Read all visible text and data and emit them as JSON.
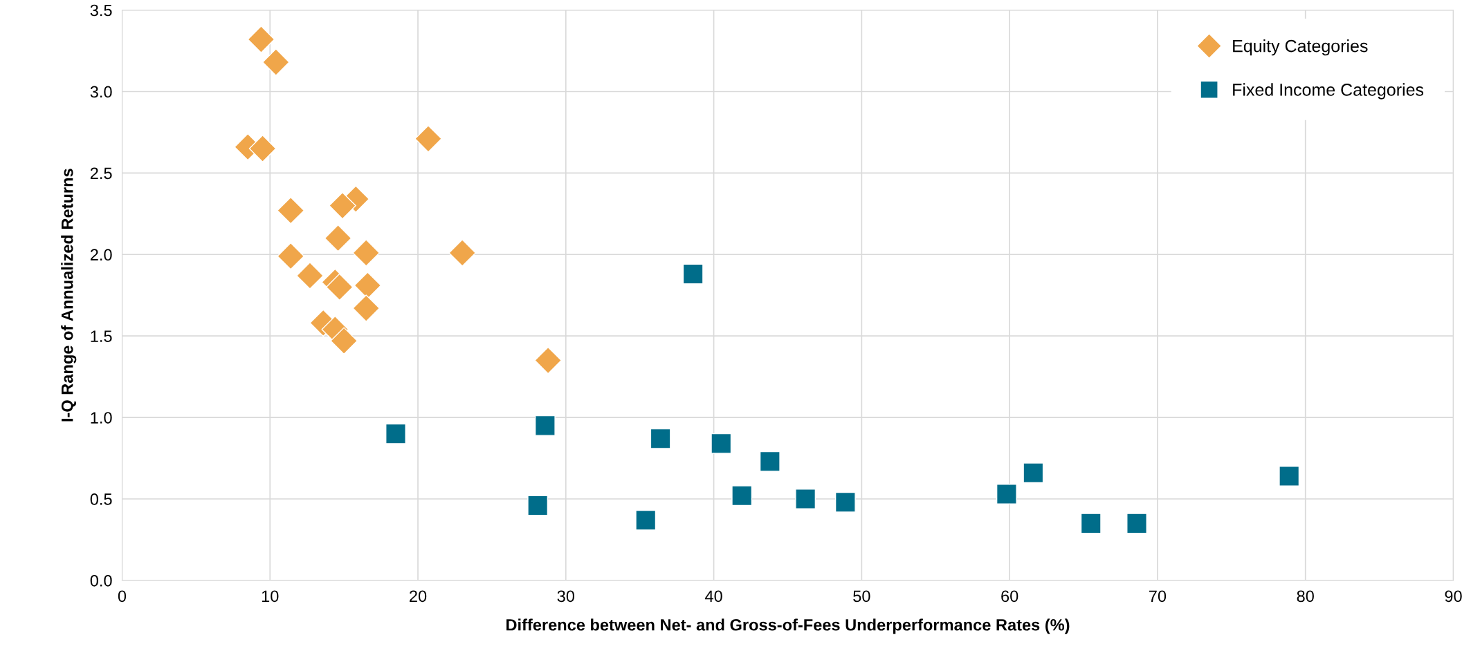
{
  "chart_data": {
    "type": "scatter",
    "xlabel": "Difference between Net- and Gross-of-Fees Underperformance Rates (%)",
    "ylabel": "I-Q Range of Annualized Returns",
    "xlim": [
      0,
      90
    ],
    "xticks": [
      0,
      10,
      20,
      30,
      40,
      50,
      60,
      70,
      80,
      90
    ],
    "ylim": [
      0,
      3.5
    ],
    "yticks": [
      {
        "value": 0,
        "label": "0.0"
      },
      {
        "value": 0.5,
        "label": "0.5"
      },
      {
        "value": 1,
        "label": "1.0"
      },
      {
        "value": 1.5,
        "label": "1.5"
      },
      {
        "value": 2,
        "label": "2.0"
      },
      {
        "value": 2.5,
        "label": "2.5"
      },
      {
        "value": 3,
        "label": "3.0"
      },
      {
        "value": 3.5,
        "label": "3.5"
      }
    ],
    "grid": true,
    "legend": "top right",
    "series": [
      {
        "name": "Equity Categories",
        "color": "#f0a64a",
        "marker": "diamond",
        "x": [
          9.4,
          10.4,
          8.5,
          9.5,
          20.7,
          11.4,
          15.8,
          14.9,
          14.6,
          11.4,
          16.5,
          23.0,
          12.7,
          14.4,
          14.7,
          16.6,
          16.5,
          13.6,
          14.4,
          15.0,
          28.8
        ],
        "values": [
          3.32,
          3.18,
          2.66,
          2.65,
          2.71,
          2.27,
          2.34,
          2.3,
          2.1,
          1.99,
          2.01,
          2.01,
          1.87,
          1.83,
          1.8,
          1.81,
          1.67,
          1.58,
          1.54,
          1.47,
          1.35
        ]
      },
      {
        "name": "Fixed Income Categories",
        "color": "#006d8a",
        "marker": "square",
        "x": [
          18.5,
          28.6,
          28.1,
          38.6,
          36.4,
          35.4,
          40.5,
          43.8,
          41.9,
          46.2,
          48.9,
          59.8,
          61.6,
          65.5,
          68.6,
          78.9
        ],
        "values": [
          0.9,
          0.95,
          0.46,
          1.88,
          0.87,
          0.37,
          0.84,
          0.73,
          0.52,
          0.5,
          0.48,
          0.53,
          0.66,
          0.35,
          0.35,
          0.64
        ]
      }
    ]
  }
}
